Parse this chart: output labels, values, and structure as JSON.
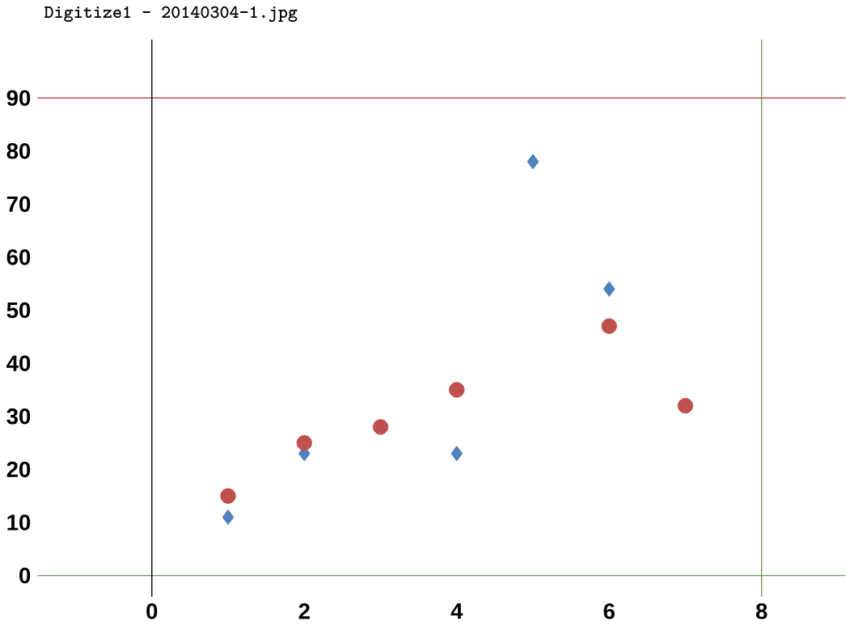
{
  "chart_data": {
    "type": "scatter",
    "title": "Digitize1 - 20140304-1.jpg",
    "series": [
      {
        "color": "#4f81bd",
        "marker": "diamond",
        "x": [
          1,
          2,
          4,
          5,
          6
        ],
        "values": [
          11,
          23,
          23,
          78,
          54
        ]
      },
      {
        "color": "#c0504d",
        "marker": "circle",
        "x": [
          1,
          2,
          3,
          4,
          6,
          7
        ],
        "values": [
          15,
          25,
          28,
          35,
          47,
          32
        ]
      }
    ],
    "xlim": [
      -1.5,
      9.1
    ],
    "ylim": [
      -4,
      101
    ],
    "xticks": [
      0,
      2,
      4,
      6,
      8
    ],
    "yticks": [
      0,
      10,
      20,
      30,
      40,
      50,
      60,
      70,
      80,
      90
    ],
    "ref_lines": [
      {
        "axis": "y",
        "value": 90,
        "color": "#a52a2a"
      },
      {
        "axis": "x",
        "value": 8,
        "color": "#6a9a5a"
      },
      {
        "axis": "x",
        "value": 0,
        "color": "#000000"
      }
    ],
    "grid": false
  }
}
